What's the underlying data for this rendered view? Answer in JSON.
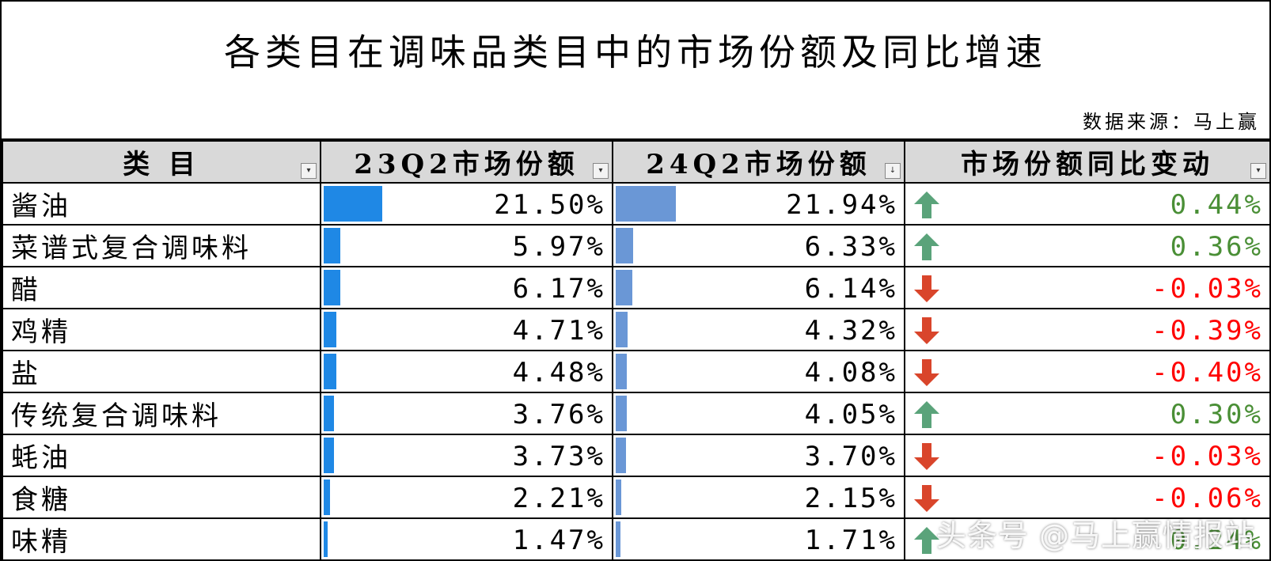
{
  "title": "各类目在调味品类目中的市场份额及同比增速",
  "source": "数据来源：马上赢",
  "headers": {
    "category": "类 目",
    "q23": "23Q2市场份额",
    "q24": "24Q2市场份额",
    "change": "市场份额同比变动"
  },
  "colors": {
    "bar_23q2": "#1f88e5",
    "bar_24q2": "#6a97d6",
    "up": "#4a8f36",
    "down": "#ff0000",
    "arrow_up": "#5aa37a",
    "arrow_down": "#d9452b"
  },
  "rows": [
    {
      "category": "酱油",
      "q23": "21.50%",
      "q23_val": 21.5,
      "q24": "21.94%",
      "q24_val": 21.94,
      "change": "0.44%",
      "dir": "up"
    },
    {
      "category": "菜谱式复合调味料",
      "q23": "5.97%",
      "q23_val": 5.97,
      "q24": "6.33%",
      "q24_val": 6.33,
      "change": "0.36%",
      "dir": "up"
    },
    {
      "category": "醋",
      "q23": "6.17%",
      "q23_val": 6.17,
      "q24": "6.14%",
      "q24_val": 6.14,
      "change": "-0.03%",
      "dir": "down"
    },
    {
      "category": "鸡精",
      "q23": "4.71%",
      "q23_val": 4.71,
      "q24": "4.32%",
      "q24_val": 4.32,
      "change": "-0.39%",
      "dir": "down"
    },
    {
      "category": "盐",
      "q23": "4.48%",
      "q23_val": 4.48,
      "q24": "4.08%",
      "q24_val": 4.08,
      "change": "-0.40%",
      "dir": "down"
    },
    {
      "category": "传统复合调味料",
      "q23": "3.76%",
      "q23_val": 3.76,
      "q24": "4.05%",
      "q24_val": 4.05,
      "change": "0.30%",
      "dir": "up"
    },
    {
      "category": "蚝油",
      "q23": "3.73%",
      "q23_val": 3.73,
      "q24": "3.70%",
      "q24_val": 3.7,
      "change": "-0.03%",
      "dir": "down"
    },
    {
      "category": "食糖",
      "q23": "2.21%",
      "q23_val": 2.21,
      "q24": "2.15%",
      "q24_val": 2.15,
      "change": "-0.06%",
      "dir": "down"
    },
    {
      "category": "味精",
      "q23": "1.47%",
      "q23_val": 1.47,
      "q24": "1.71%",
      "q24_val": 1.71,
      "change": "0.24%",
      "dir": "up"
    }
  ],
  "watermark": "头条号 @马上赢情报站"
}
